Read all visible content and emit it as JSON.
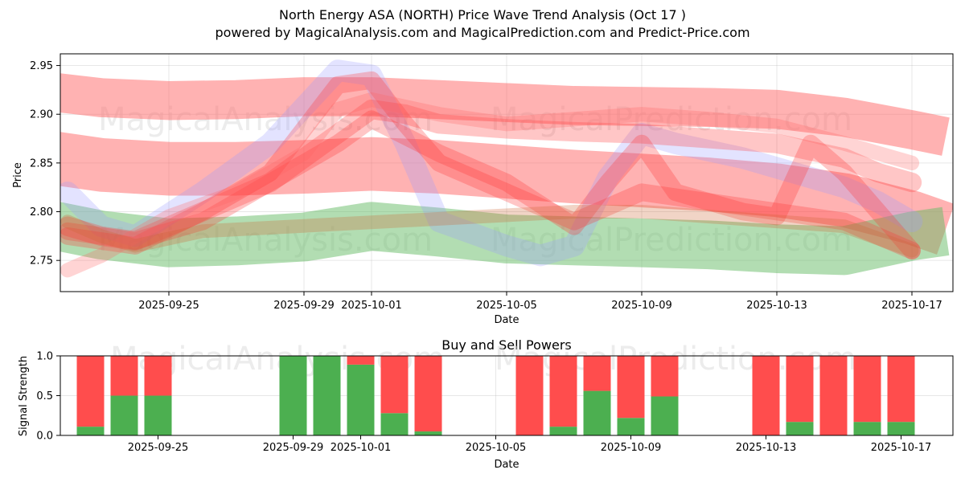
{
  "header": {
    "title": "North Energy ASA (NORTH) Price Wave Trend Analysis (Oct 17 )",
    "subtitle": "powered by MagicalAnalysis.com and MagicalPrediction.com and Predict-Price.com"
  },
  "watermarks": [
    "MagicalAnalysis.com",
    "MagicalPrediction.com"
  ],
  "colors": {
    "buy": "#4caf50",
    "sell": "#ff4d4d",
    "blue_band": "#9999ff",
    "red_band": "#ff6666",
    "green_band": "#66bb66"
  },
  "chart_data": [
    {
      "type": "line",
      "title": "",
      "xlabel": "Date",
      "ylabel": "Price",
      "x_range": [
        "2025-09-21",
        "2025-10-18"
      ],
      "ylim": [
        2.718,
        2.962
      ],
      "yticks": [
        "2.75",
        "2.80",
        "2.85",
        "2.90",
        "2.95"
      ],
      "xticks": [
        "2025-09-25",
        "2025-09-29",
        "2025-10-01",
        "2025-10-05",
        "2025-10-09",
        "2025-10-13",
        "2025-10-17"
      ],
      "grid": true,
      "series": [
        {
          "name": "upper red band",
          "color": "#ff6666",
          "width": 0.04,
          "x": [
            "2025-09-21",
            "2025-09-23",
            "2025-09-25",
            "2025-09-27",
            "2025-09-29",
            "2025-10-01",
            "2025-10-03",
            "2025-10-05",
            "2025-10-07",
            "2025-10-09",
            "2025-10-11",
            "2025-10-13",
            "2025-10-15",
            "2025-10-17",
            "2025-10-18"
          ],
          "values": [
            2.925,
            2.917,
            2.914,
            2.915,
            2.918,
            2.918,
            2.915,
            2.912,
            2.909,
            2.908,
            2.907,
            2.905,
            2.897,
            2.884,
            2.877
          ]
        },
        {
          "name": "middle red band",
          "color": "#ff6666",
          "width": 0.055,
          "x": [
            "2025-09-21",
            "2025-09-23",
            "2025-09-25",
            "2025-09-27",
            "2025-09-29",
            "2025-10-01",
            "2025-10-03",
            "2025-10-05",
            "2025-10-07",
            "2025-10-09",
            "2025-10-11",
            "2025-10-13",
            "2025-10-15",
            "2025-10-17",
            "2025-10-18"
          ],
          "values": [
            2.858,
            2.848,
            2.844,
            2.844,
            2.846,
            2.849,
            2.846,
            2.841,
            2.836,
            2.832,
            2.828,
            2.822,
            2.812,
            2.794,
            2.782
          ]
        },
        {
          "name": "green band",
          "color": "#66bb66",
          "width": 0.05,
          "x": [
            "2025-09-21",
            "2025-09-23",
            "2025-09-25",
            "2025-09-27",
            "2025-09-29",
            "2025-10-01",
            "2025-10-03",
            "2025-10-05",
            "2025-10-07",
            "2025-10-09",
            "2025-10-11",
            "2025-10-13",
            "2025-10-15",
            "2025-10-17",
            "2025-10-18"
          ],
          "values": [
            2.79,
            2.776,
            2.768,
            2.77,
            2.774,
            2.785,
            2.779,
            2.772,
            2.77,
            2.768,
            2.766,
            2.762,
            2.76,
            2.775,
            2.78
          ]
        },
        {
          "name": "blue wave",
          "color": "#9999ff",
          "width": 0.022,
          "x": [
            "2025-09-22",
            "2025-09-23",
            "2025-09-24",
            "2025-09-26",
            "2025-09-28",
            "2025-09-30",
            "2025-10-01",
            "2025-10-02",
            "2025-10-03",
            "2025-10-05",
            "2025-10-06",
            "2025-10-07",
            "2025-10-08",
            "2025-10-09",
            "2025-10-10",
            "2025-10-12",
            "2025-10-13",
            "2025-10-14",
            "2025-10-15",
            "2025-10-16",
            "2025-10-17"
          ],
          "values": [
            2.82,
            2.785,
            2.775,
            2.82,
            2.87,
            2.945,
            2.94,
            2.87,
            2.79,
            2.765,
            2.755,
            2.765,
            2.835,
            2.88,
            2.87,
            2.855,
            2.845,
            2.835,
            2.825,
            2.81,
            2.79
          ]
        },
        {
          "name": "red wave 1",
          "color": "#ff3333",
          "width": 0.02,
          "x": [
            "2025-09-22",
            "2025-09-23",
            "2025-09-24",
            "2025-09-26",
            "2025-09-28",
            "2025-09-30",
            "2025-10-01",
            "2025-10-02",
            "2025-10-03",
            "2025-10-05",
            "2025-10-07",
            "2025-10-09",
            "2025-10-11",
            "2025-10-13",
            "2025-10-15",
            "2025-10-16",
            "2025-10-17"
          ],
          "values": [
            2.785,
            2.775,
            2.77,
            2.8,
            2.83,
            2.88,
            2.905,
            2.9,
            2.89,
            2.885,
            2.882,
            2.88,
            2.875,
            2.87,
            2.855,
            2.84,
            2.83
          ]
        },
        {
          "name": "red wave 2",
          "color": "#ff3333",
          "width": 0.018,
          "x": [
            "2025-09-22",
            "2025-09-24",
            "2025-09-26",
            "2025-09-28",
            "2025-09-30",
            "2025-10-01",
            "2025-10-02",
            "2025-10-03",
            "2025-10-05",
            "2025-10-07",
            "2025-10-09",
            "2025-10-11",
            "2025-10-13",
            "2025-10-15",
            "2025-10-16",
            "2025-10-17"
          ],
          "values": [
            2.775,
            2.765,
            2.8,
            2.84,
            2.93,
            2.935,
            2.89,
            2.85,
            2.82,
            2.79,
            2.82,
            2.81,
            2.8,
            2.79,
            2.775,
            2.76
          ]
        },
        {
          "name": "red wave 3",
          "color": "#ff3333",
          "width": 0.018,
          "x": [
            "2025-09-22",
            "2025-09-24",
            "2025-09-26",
            "2025-09-28",
            "2025-09-30",
            "2025-10-01",
            "2025-10-03",
            "2025-10-05",
            "2025-10-07",
            "2025-10-08",
            "2025-10-09",
            "2025-10-10",
            "2025-10-12",
            "2025-10-13",
            "2025-10-14",
            "2025-10-15",
            "2025-10-17"
          ],
          "values": [
            2.78,
            2.77,
            2.79,
            2.83,
            2.87,
            2.895,
            2.86,
            2.83,
            2.785,
            2.83,
            2.87,
            2.82,
            2.8,
            2.795,
            2.87,
            2.84,
            2.76
          ]
        },
        {
          "name": "red wave 4",
          "color": "#ff6666",
          "width": 0.015,
          "x": [
            "2025-09-22",
            "2025-09-23",
            "2025-09-25",
            "2025-09-27",
            "2025-09-29",
            "2025-09-30",
            "2025-10-01",
            "2025-10-03",
            "2025-10-05",
            "2025-10-07",
            "2025-10-09",
            "2025-10-11",
            "2025-10-13",
            "2025-10-15",
            "2025-10-17"
          ],
          "values": [
            2.74,
            2.755,
            2.795,
            2.82,
            2.86,
            2.905,
            2.915,
            2.9,
            2.89,
            2.895,
            2.9,
            2.895,
            2.888,
            2.87,
            2.85
          ]
        },
        {
          "name": "orange wave",
          "color": "#cc6633",
          "width": 0.014,
          "x": [
            "2025-09-22",
            "2025-09-23",
            "2025-09-24",
            "2025-09-26",
            "2025-10-07",
            "2025-10-09",
            "2025-10-11",
            "2025-10-13",
            "2025-10-15",
            "2025-10-17"
          ],
          "values": [
            2.79,
            2.775,
            2.765,
            2.78,
            2.8,
            2.8,
            2.795,
            2.79,
            2.785,
            2.76
          ]
        }
      ]
    },
    {
      "type": "bar",
      "title": "Buy and Sell Powers",
      "xlabel": "Date",
      "ylabel": "Signal Strength",
      "ylim": [
        0,
        1.0
      ],
      "yticks": [
        "0.0",
        "0.5",
        "1.0"
      ],
      "xticks": [
        "2025-09-25",
        "2025-09-29",
        "2025-10-01",
        "2025-10-05",
        "2025-10-09",
        "2025-10-13",
        "2025-10-17"
      ],
      "categories": [
        "2025-09-23",
        "2025-09-24",
        "2025-09-25",
        "2025-09-29",
        "2025-09-30",
        "2025-10-01",
        "2025-10-02",
        "2025-10-03",
        "2025-10-06",
        "2025-10-07",
        "2025-10-08",
        "2025-10-09",
        "2025-10-10",
        "2025-10-13",
        "2025-10-14",
        "2025-10-15",
        "2025-10-16",
        "2025-10-17"
      ],
      "series": [
        {
          "name": "Buy",
          "color": "#4caf50",
          "values": [
            0.11,
            0.5,
            0.5,
            1.0,
            1.0,
            0.89,
            0.28,
            0.05,
            0.0,
            0.11,
            0.56,
            0.22,
            0.49,
            0.0,
            0.17,
            0.0,
            0.17,
            0.17
          ]
        },
        {
          "name": "Sell",
          "color": "#ff4d4d",
          "values": [
            0.89,
            0.5,
            0.5,
            0.0,
            0.0,
            0.11,
            0.72,
            0.95,
            1.0,
            0.89,
            0.44,
            0.78,
            0.51,
            1.0,
            0.83,
            1.0,
            0.83,
            0.83
          ]
        }
      ]
    }
  ]
}
